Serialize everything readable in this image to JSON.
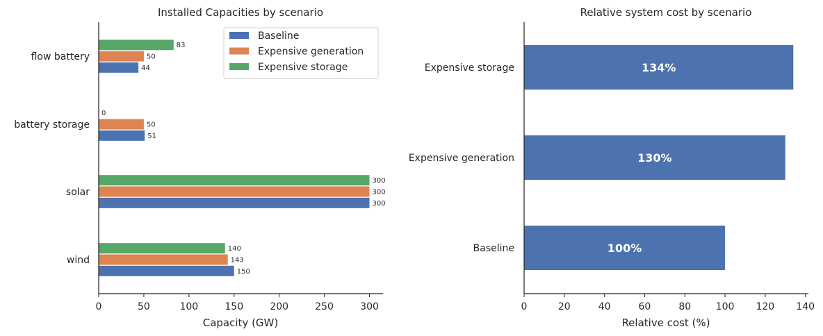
{
  "colors": {
    "Baseline": "#4c72b0",
    "Expensive generation": "#dd8452",
    "Expensive storage": "#55a868",
    "axis": "#262626"
  },
  "chart_data": [
    {
      "type": "bar",
      "orientation": "horizontal",
      "title": "Installed Capacities by scenario",
      "xlabel": "Capacity (GW)",
      "ylabel": "",
      "xlim": [
        0,
        315
      ],
      "xticks": [
        0,
        50,
        100,
        150,
        200,
        250,
        300
      ],
      "categories": [
        "wind",
        "solar",
        "battery storage",
        "flow battery"
      ],
      "series": [
        {
          "name": "Baseline",
          "values": [
            150,
            300,
            51,
            44
          ],
          "labels": [
            "150",
            "300",
            "51",
            "44"
          ]
        },
        {
          "name": "Expensive generation",
          "values": [
            143,
            300,
            50,
            50
          ],
          "labels": [
            "143",
            "300",
            "50",
            "50"
          ]
        },
        {
          "name": "Expensive storage",
          "values": [
            140,
            300,
            0,
            83
          ],
          "labels": [
            "140",
            "300",
            "0",
            "83"
          ]
        }
      ],
      "legend": "top-right",
      "grid": false
    },
    {
      "type": "bar",
      "orientation": "horizontal",
      "title": "Relative system cost by scenario",
      "xlabel": "Relative cost (%)",
      "ylabel": "",
      "xlim": [
        0,
        141.5
      ],
      "xticks": [
        0,
        20,
        40,
        60,
        80,
        100,
        120,
        140
      ],
      "categories": [
        "Baseline",
        "Expensive generation",
        "Expensive storage"
      ],
      "values": [
        100,
        130,
        134
      ],
      "labels": [
        "100%",
        "130%",
        "134%"
      ],
      "grid": false
    }
  ]
}
